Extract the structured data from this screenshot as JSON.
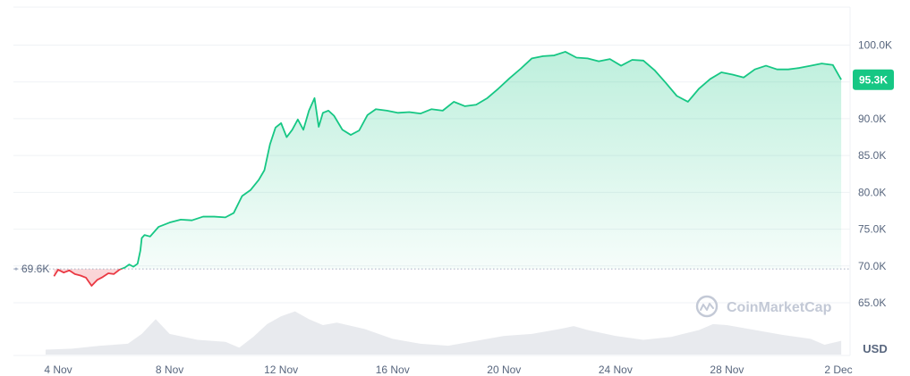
{
  "colors": {
    "up": "#16c784",
    "down": "#ea3943",
    "grid": "#eff2f5",
    "axis_text": "#58667e",
    "volume": "#e6e8ec",
    "badge": "#16c784"
  },
  "watermark": {
    "brand": "CoinMarketCap",
    "icon": "coinmarketcap-logo-icon"
  },
  "chart_data": {
    "type": "area",
    "title": "",
    "xlabel": "",
    "ylabel": "",
    "unit": "USD",
    "ylim": [
      61000,
      104500
    ],
    "y_ticks": [
      {
        "value": 65000,
        "label": "65.0K"
      },
      {
        "value": 70000,
        "label": "70.0K"
      },
      {
        "value": 75000,
        "label": "75.0K"
      },
      {
        "value": 80000,
        "label": "80.0K"
      },
      {
        "value": 85000,
        "label": "85.0K"
      },
      {
        "value": 90000,
        "label": "90.0K"
      },
      {
        "value": 95000,
        "label": "95.0K"
      },
      {
        "value": 100000,
        "label": "100.0K"
      }
    ],
    "x_ticks": [
      {
        "day": 4,
        "label": "4 Nov"
      },
      {
        "day": 8,
        "label": "8 Nov"
      },
      {
        "day": 12,
        "label": "12 Nov"
      },
      {
        "day": 16,
        "label": "16 Nov"
      },
      {
        "day": 20,
        "label": "20 Nov"
      },
      {
        "day": 24,
        "label": "24 Nov"
      },
      {
        "day": 28,
        "label": "28 Nov"
      },
      {
        "day": 32,
        "label": "2 Dec"
      }
    ],
    "baseline": {
      "value": 69600,
      "label": "69.6K"
    },
    "current": {
      "value": 95300,
      "label": "95.3K"
    },
    "price": {
      "x": [
        3.85,
        4.0,
        4.2,
        4.4,
        4.6,
        4.8,
        5.0,
        5.2,
        5.4,
        5.6,
        5.8,
        6.0,
        6.2,
        6.4,
        6.55,
        6.7,
        6.85,
        6.95,
        7.0,
        7.1,
        7.3,
        7.6,
        8.0,
        8.4,
        8.8,
        9.2,
        9.6,
        10.0,
        10.3,
        10.6,
        10.9,
        11.2,
        11.4,
        11.6,
        11.8,
        12.0,
        12.2,
        12.4,
        12.6,
        12.8,
        13.0,
        13.2,
        13.35,
        13.5,
        13.7,
        13.9,
        14.2,
        14.5,
        14.8,
        15.1,
        15.4,
        15.8,
        16.2,
        16.6,
        17.0,
        17.4,
        17.8,
        18.2,
        18.6,
        19.0,
        19.4,
        19.8,
        20.2,
        20.6,
        21.0,
        21.4,
        21.8,
        22.2,
        22.6,
        23.0,
        23.4,
        23.8,
        24.2,
        24.6,
        25.0,
        25.4,
        25.8,
        26.2,
        26.6,
        27.0,
        27.4,
        27.8,
        28.2,
        28.6,
        29.0,
        29.4,
        29.8,
        30.2,
        30.6,
        31.0,
        31.4,
        31.8,
        32.1
      ],
      "y": [
        68600,
        69500,
        69100,
        69400,
        68900,
        68700,
        68400,
        67300,
        68100,
        68500,
        69000,
        68900,
        69500,
        69800,
        70200,
        69900,
        70300,
        72100,
        73800,
        74200,
        74000,
        75300,
        75900,
        76300,
        76200,
        76700,
        76700,
        76600,
        77200,
        79500,
        80300,
        81700,
        83000,
        86500,
        88800,
        89400,
        87500,
        88500,
        89900,
        88500,
        91100,
        92800,
        88900,
        90800,
        91100,
        90400,
        88500,
        87800,
        88400,
        90500,
        91300,
        91100,
        90800,
        90900,
        90700,
        91300,
        91100,
        92300,
        91700,
        91900,
        92800,
        94100,
        95500,
        96800,
        98200,
        98500,
        98600,
        99100,
        98300,
        98200,
        97800,
        98100,
        97200,
        98000,
        97900,
        96600,
        94900,
        93100,
        92300,
        94100,
        95400,
        96300,
        96000,
        95600,
        96700,
        97200,
        96700,
        96700,
        96900,
        97200,
        97500,
        97300,
        95300
      ]
    },
    "volume": {
      "x": [
        3.55,
        4.5,
        5.5,
        6.5,
        7.0,
        7.5,
        8.0,
        9.0,
        10.0,
        10.5,
        11.0,
        11.5,
        12.0,
        12.5,
        13.0,
        13.5,
        14.0,
        15.0,
        16.0,
        17.0,
        18.0,
        19.0,
        20.0,
        21.0,
        22.0,
        22.5,
        23.0,
        24.0,
        25.0,
        26.0,
        27.0,
        27.5,
        28.0,
        29.0,
        30.0,
        31.0,
        31.5,
        32.1
      ],
      "y": [
        0.1,
        0.12,
        0.18,
        0.22,
        0.42,
        0.72,
        0.42,
        0.3,
        0.26,
        0.14,
        0.36,
        0.62,
        0.78,
        0.88,
        0.72,
        0.6,
        0.65,
        0.52,
        0.32,
        0.22,
        0.18,
        0.28,
        0.38,
        0.42,
        0.52,
        0.58,
        0.5,
        0.38,
        0.3,
        0.36,
        0.5,
        0.62,
        0.6,
        0.5,
        0.4,
        0.32,
        0.2,
        0.28
      ]
    }
  }
}
